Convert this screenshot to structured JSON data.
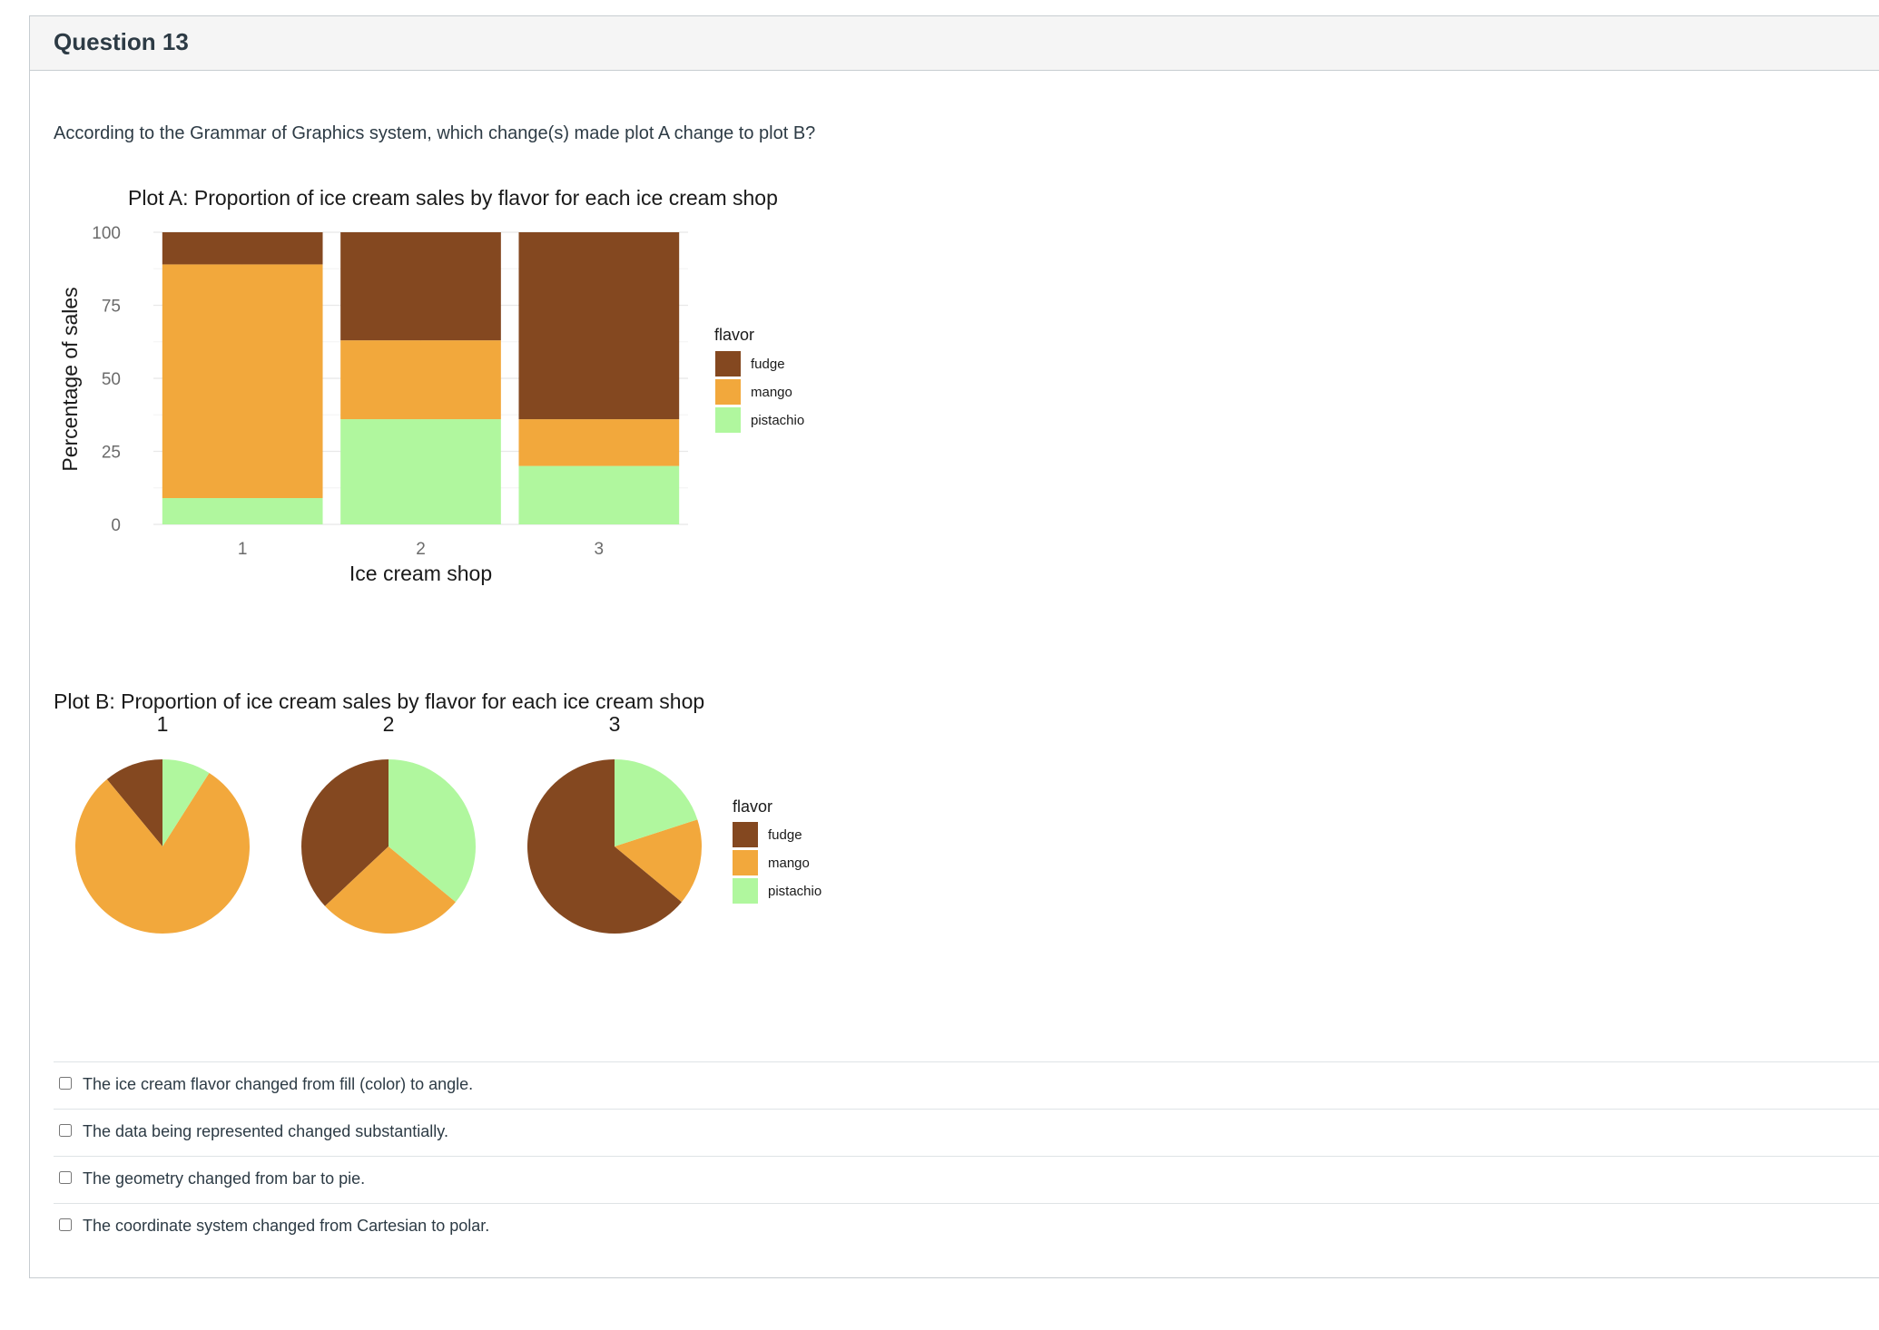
{
  "question": {
    "title": "Question 13",
    "prompt": "According to the Grammar of Graphics system, which change(s) made plot A change to plot B?",
    "answers": [
      {
        "label": "The ice cream flavor changed from fill (color) to angle.",
        "checked": false
      },
      {
        "label": "The data being represented changed substantially.",
        "checked": false
      },
      {
        "label": "The geometry changed from bar to pie.",
        "checked": false
      },
      {
        "label": "The coordinate system changed from Cartesian to polar.",
        "checked": false
      }
    ]
  },
  "colors": {
    "fudge": "#844820",
    "mango": "#f2a83c",
    "pistachio": "#b0f79e"
  },
  "chart_data": [
    {
      "type": "bar",
      "title": "Plot A: Proportion of ice cream sales by flavor for each ice cream shop",
      "xlabel": "Ice cream shop",
      "ylabel": "Percentage of sales",
      "categories": [
        "1",
        "2",
        "3"
      ],
      "yticks": [
        "0",
        "25",
        "50",
        "75",
        "100"
      ],
      "ylim": [
        0,
        100
      ],
      "stacked": true,
      "legend_title": "flavor",
      "series": [
        {
          "name": "pistachio",
          "values": [
            9,
            36,
            20
          ]
        },
        {
          "name": "mango",
          "values": [
            80,
            27,
            16
          ]
        },
        {
          "name": "fudge",
          "values": [
            11,
            37,
            64
          ]
        }
      ]
    },
    {
      "type": "pie",
      "title": "Plot B: Proportion of ice cream sales by flavor for each ice cream shop",
      "facets": [
        "1",
        "2",
        "3"
      ],
      "legend_title": "flavor",
      "series": [
        {
          "name": "fudge",
          "values": [
            11,
            37,
            64
          ]
        },
        {
          "name": "mango",
          "values": [
            80,
            27,
            16
          ]
        },
        {
          "name": "pistachio",
          "values": [
            9,
            36,
            20
          ]
        }
      ]
    }
  ]
}
